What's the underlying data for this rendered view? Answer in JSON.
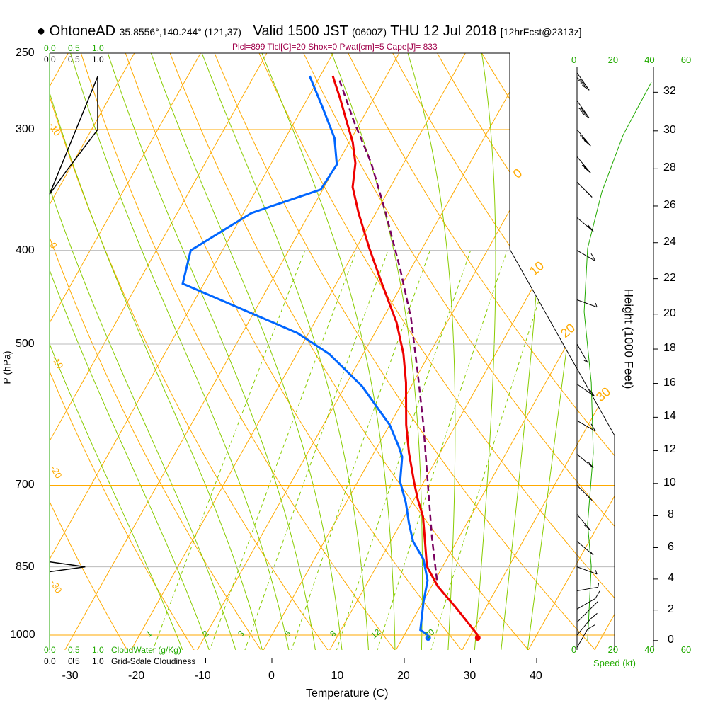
{
  "header": {
    "station": "OhtoneAD",
    "coords": "35.8556°,140.244° (121,37)",
    "valid": "Valid 1500 JST",
    "utc": "(0600Z)",
    "date": "THU 12 Jul 2018",
    "forecast": "[12hrFcst@2313z]"
  },
  "indices": "Plcl=899 Tlcl[C]=20 Shox=0 Pwat[cm]=5 Cape[J]= 833",
  "colors": {
    "temperature": "#ee0000",
    "dewpoint": "#0066ff",
    "parcel": "#7a0060",
    "isotherm": "#ffaa00",
    "moist": "#88cc00",
    "mixing": "#88cc00",
    "speed": "#22aa00",
    "index": "#a0004a"
  },
  "axes": {
    "xlabel": "Temperature (C)",
    "ylabel": "P (hPa)",
    "y2label": "Height (1000 Feet)",
    "speed_label": "Speed (kt)",
    "cloudwater_label": "CloudWater (g/Kg)",
    "cloudiness_label": "Grid-Scale Cloudiness",
    "cloud_ticks": [
      "0.0",
      "0.5",
      "1.0"
    ],
    "speed_ticks": [
      "0",
      "20",
      "40",
      "60"
    ],
    "pressure_ticks": [
      250,
      300,
      400,
      500,
      700,
      850,
      1000
    ],
    "temp_ticks": [
      -30,
      -20,
      -10,
      0,
      10,
      20,
      30,
      40
    ],
    "height_ticks_kft": [
      0,
      2,
      4,
      6,
      8,
      10,
      12,
      14,
      16,
      18,
      20,
      22,
      24,
      26,
      28,
      30,
      32
    ],
    "mixing_ratio_labels": [
      1,
      2,
      3,
      5,
      8,
      12,
      20
    ],
    "adiabat_labels_left": [
      "-10",
      "0",
      "-10",
      "-20",
      "-30"
    ],
    "adiabat_labels_right": [
      "0",
      "10",
      "20",
      "30"
    ]
  },
  "chart_data": {
    "type": "line",
    "title": "Skew-T log-P sounding",
    "xlabel": "Temperature (C)",
    "ylabel": "P (hPa)",
    "ylim": [
      1036,
      250
    ],
    "xlim_at_1000hPa": [
      -33,
      52
    ],
    "series": [
      {
        "name": "temperature",
        "p": [
          1000,
          939,
          890,
          849,
          794,
          754,
          723,
          694,
          648,
          606,
          548,
          512,
          475,
          433,
          398,
          366,
          344,
          325,
          309,
          294,
          279,
          264
        ],
        "t": [
          31.1,
          25.7,
          20.9,
          17.6,
          14.9,
          12.8,
          10.5,
          8.5,
          5.3,
          2.5,
          -1.1,
          -3.9,
          -7.6,
          -13.1,
          -18,
          -22.6,
          -25.7,
          -27.3,
          -29.5,
          -32.2,
          -35,
          -38.1
        ]
      },
      {
        "name": "dewpoint",
        "p": [
          1000,
          988,
          924,
          878,
          835,
          800,
          767,
          729,
          694,
          654,
          638,
          606,
          553,
          512,
          487,
          433,
          400,
          366,
          346,
          326,
          306,
          284,
          264
        ],
        "t": [
          23.6,
          22,
          20.1,
          18.9,
          16.5,
          13.4,
          11.3,
          9,
          6.4,
          4.6,
          3.2,
          0,
          -7.4,
          -15.1,
          -21.7,
          -43.2,
          -44.8,
          -38.8,
          -30.3,
          -30,
          -32.6,
          -37.1,
          -41.6
        ]
      },
      {
        "name": "parcel",
        "p": [
          1000,
          939,
          890,
          794,
          705,
          606,
          538,
          470,
          418,
          366,
          325,
          294,
          265
        ],
        "t": [
          31.1,
          25.7,
          20.9,
          16,
          11.2,
          5.1,
          0.05,
          -5.8,
          -11.6,
          -18.5,
          -24.9,
          -31.1,
          -37.1
        ]
      }
    ],
    "wind_speed": {
      "p": [
        1013,
        849,
        767,
        648,
        548,
        463,
        398,
        348,
        304,
        268
      ],
      "kt": [
        5.8,
        7.8,
        5.8,
        8.9,
        7.8,
        3.9,
        5.8,
        13.6,
        25.2,
        40.7
      ]
    },
    "cloudiness": {
      "p": [
        264,
        300,
        330,
        350
      ],
      "v": [
        1.0,
        1.0,
        0.37,
        0
      ]
    },
    "cloudwater": {
      "p": [
        840,
        850,
        860
      ],
      "v": [
        0,
        0.74,
        0
      ]
    },
    "wind_barbs": [
      {
        "p": 1030,
        "kt": 10,
        "dir": 330
      },
      {
        "p": 1000,
        "kt": 10,
        "dir": 320
      },
      {
        "p": 970,
        "kt": 10,
        "dir": 315
      },
      {
        "p": 940,
        "kt": 10,
        "dir": 300
      },
      {
        "p": 900,
        "kt": 5,
        "dir": 280
      },
      {
        "p": 850,
        "kt": 5,
        "dir": 250
      },
      {
        "p": 800,
        "kt": 5,
        "dir": 230
      },
      {
        "p": 750,
        "kt": 10,
        "dir": 220
      },
      {
        "p": 700,
        "kt": 10,
        "dir": 225
      },
      {
        "p": 650,
        "kt": 10,
        "dir": 230
      },
      {
        "p": 600,
        "kt": 10,
        "dir": 240
      },
      {
        "p": 550,
        "kt": 10,
        "dir": 235
      },
      {
        "p": 500,
        "kt": 5,
        "dir": 210
      },
      {
        "p": 450,
        "kt": 5,
        "dir": 250
      },
      {
        "p": 400,
        "kt": 10,
        "dir": 240
      },
      {
        "p": 370,
        "kt": 15,
        "dir": 230
      },
      {
        "p": 340,
        "kt": 20,
        "dir": 225
      },
      {
        "p": 320,
        "kt": 25,
        "dir": 220
      },
      {
        "p": 300,
        "kt": 30,
        "dir": 220
      },
      {
        "p": 280,
        "kt": 35,
        "dir": 215
      },
      {
        "p": 262,
        "kt": 40,
        "dir": 215
      }
    ]
  }
}
